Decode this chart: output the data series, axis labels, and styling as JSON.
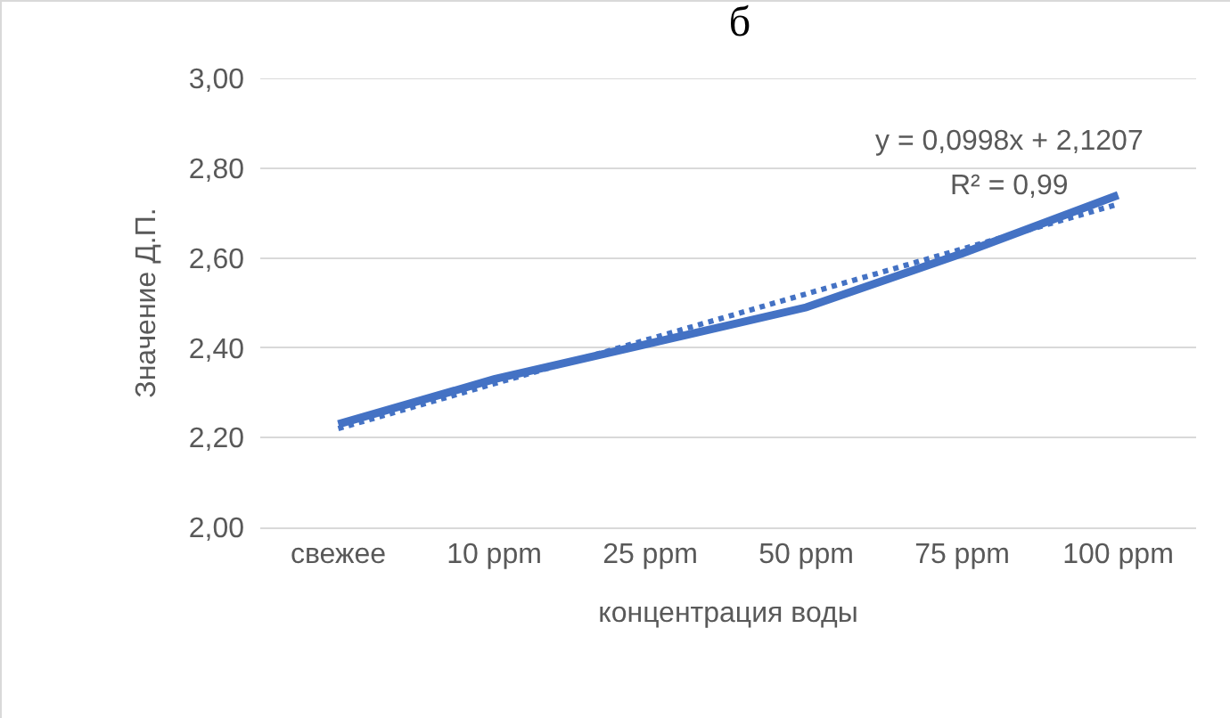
{
  "chart_data": {
    "type": "line",
    "title": "б",
    "xlabel": "концентрация воды",
    "ylabel": "Значение Д.П.",
    "categories": [
      "свежее",
      "10 ppm",
      "25 ppm",
      "50 ppm",
      "75 ppm",
      "100 ppm"
    ],
    "series": [
      {
        "color": "#4472c4",
        "values": [
          2.23,
          2.33,
          2.41,
          2.49,
          2.61,
          2.74
        ]
      },
      {
        "type": "line",
        "color": "#4472c4",
        "line_style": "dotted",
        "values": [
          2.22,
          2.32,
          2.42,
          2.52,
          2.62,
          2.72
        ]
      }
    ],
    "ylim": [
      2,
      3
    ],
    "yticks": [
      {
        "value": 2,
        "label": "2,00"
      },
      {
        "value": 2.2,
        "label": "2,20"
      },
      {
        "value": 2.4,
        "label": "2,40"
      },
      {
        "value": 2.6,
        "label": "2,60"
      },
      {
        "value": 2.8,
        "label": "2,80"
      },
      {
        "value": 3,
        "label": "3,00"
      }
    ],
    "grid": "y",
    "marker": "none",
    "line_style": "solid",
    "annotations": [
      "y = 0,0998x + 2,1207",
      "R² = 0,99"
    ]
  }
}
